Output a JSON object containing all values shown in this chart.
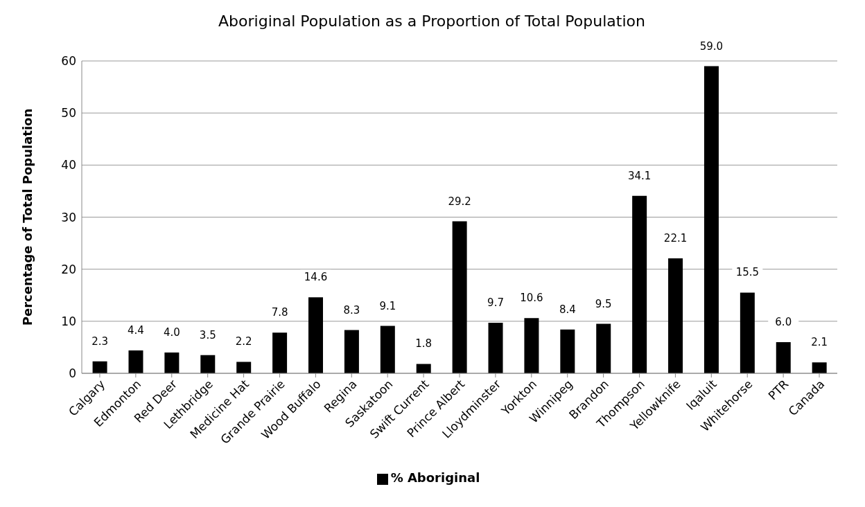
{
  "chart_data": {
    "type": "bar",
    "title": "Aboriginal Population as a Proportion of Total Population",
    "ylabel": "Percentage of Total Population",
    "categories": [
      "Calgary",
      "Edmonton",
      "Red Deer",
      "Lethbridge",
      "Medicine Hat",
      "Grande Prairie",
      "Wood Buffalo",
      "Regina",
      "Saskatoon",
      "Swift Current",
      "Prince Albert",
      "Lloydminster",
      "Yorkton",
      "Winnipeg",
      "Brandon",
      "Thompson",
      "Yellowknife",
      "Iqaluit",
      "Whitehorse",
      "PTR",
      "Canada"
    ],
    "series": [
      {
        "name": "% Aboriginal",
        "color": "#000000",
        "values": [
          2.3,
          4.4,
          4.0,
          3.5,
          2.2,
          7.8,
          14.6,
          8.3,
          9.1,
          1.8,
          29.2,
          9.7,
          10.6,
          8.4,
          9.5,
          34.1,
          22.1,
          59.0,
          15.5,
          6.0,
          2.1
        ],
        "value_labels": [
          "2.3",
          "4.4",
          "4.0",
          "3.5",
          "2.2",
          "7.8",
          "14.6",
          "8.3",
          "9.1",
          "1.8",
          "29.2",
          "9.7",
          "10.6",
          "8.4",
          "9.5",
          "34.1",
          "22.1",
          "59.0",
          "15.5",
          "6.0",
          "2.1"
        ]
      }
    ],
    "ylim": [
      0,
      60
    ],
    "yticks": [
      0,
      10,
      20,
      30,
      40,
      50,
      60
    ],
    "grid": "y",
    "legend": "bottom"
  }
}
